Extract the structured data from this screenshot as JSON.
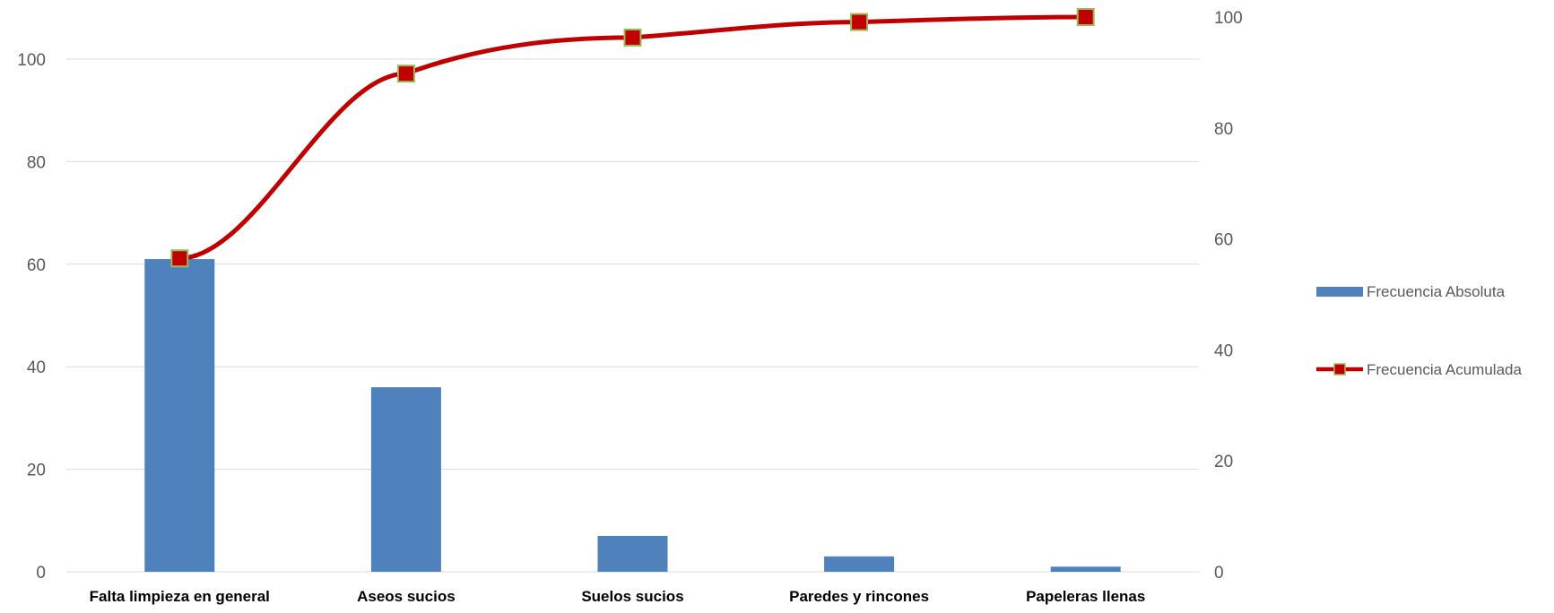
{
  "chart_data": {
    "type": "bar",
    "categories": [
      "Falta limpieza en general",
      "Aseos sucios",
      "Suelos sucios",
      "Paredes y rincones",
      "Papeleras llenas"
    ],
    "series": [
      {
        "name": "Frecuencia Absoluta",
        "type": "bar",
        "axis": "left",
        "values": [
          61,
          36,
          7,
          3,
          1
        ],
        "color": "#4f81bd"
      },
      {
        "name": "Frecuencia Acumulada",
        "type": "line",
        "axis": "right",
        "values": [
          56.5,
          89.8,
          96.3,
          99.1,
          100
        ],
        "color": "#c00000",
        "marker_color": "#9bbb59"
      }
    ],
    "y_left": {
      "ylim": [
        0,
        100
      ],
      "ticks": [
        "0",
        "20",
        "40",
        "60",
        "80",
        "100"
      ]
    },
    "y_right": {
      "ylim": [
        0,
        100
      ],
      "ticks": [
        "0",
        "20",
        "40",
        "60",
        "80",
        "100"
      ]
    },
    "grid": true,
    "legend": "right"
  }
}
